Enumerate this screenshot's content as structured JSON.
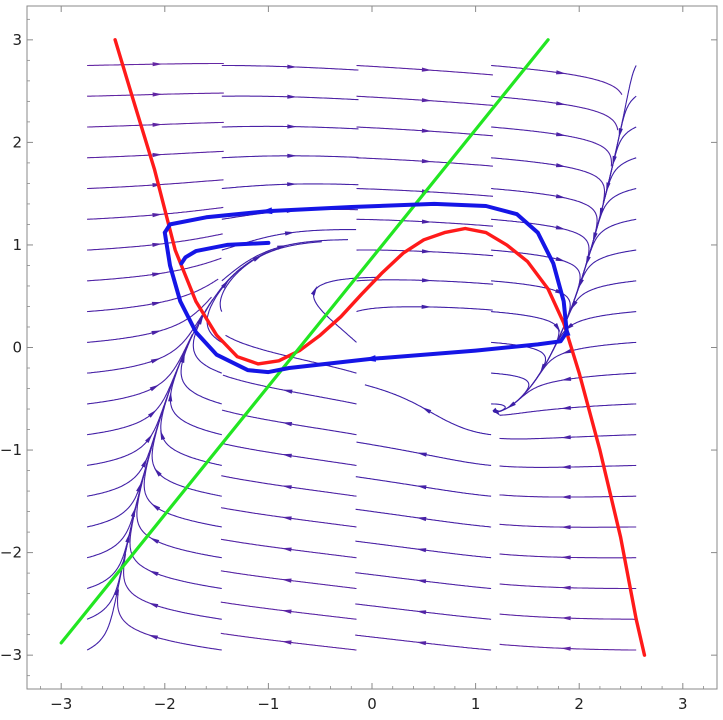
{
  "chart_data": {
    "type": "stream",
    "title": "",
    "xlabel": "",
    "ylabel": "",
    "xlim": [
      -3.33,
      3.33
    ],
    "ylim": [
      -3.33,
      3.33
    ],
    "x_ticks": [
      -3,
      -2,
      -1,
      0,
      1,
      2,
      3
    ],
    "y_ticks": [
      -3,
      -2,
      -1,
      0,
      1,
      2,
      3
    ],
    "x_tick_labels": [
      "−3",
      "−2",
      "−1",
      "0",
      "1",
      "2",
      "3"
    ],
    "y_tick_labels": [
      "−3",
      "−2",
      "−1",
      "0",
      "1",
      "2",
      "3"
    ],
    "grid": false,
    "frame": true,
    "colors": {
      "frame": "#8a8a8a",
      "stream_slow": "#3a1fa8",
      "stream_mid": "#8a2e9e",
      "stream_fast": "#ff8c14",
      "nullcline_cubic": "#ff1a1a",
      "nullcline_line": "#22e622",
      "limit_cycle": "#1515e6"
    },
    "curves": [
      {
        "name": "",
        "kind": "cubic-nullcline",
        "color": "#ff1a1a",
        "points": [
          [
            -2.48,
            3.0
          ],
          [
            -2.3,
            2.4
          ],
          [
            -2.1,
            1.74
          ],
          [
            -1.9,
            0.95
          ],
          [
            -1.7,
            0.45
          ],
          [
            -1.5,
            0.12
          ],
          [
            -1.3,
            -0.09
          ],
          [
            -1.1,
            -0.16
          ],
          [
            -0.9,
            -0.13
          ],
          [
            -0.7,
            -0.03
          ],
          [
            -0.5,
            0.12
          ],
          [
            -0.3,
            0.3
          ],
          [
            -0.1,
            0.52
          ],
          [
            0.1,
            0.73
          ],
          [
            0.3,
            0.92
          ],
          [
            0.5,
            1.05
          ],
          [
            0.7,
            1.12
          ],
          [
            0.9,
            1.16
          ],
          [
            1.1,
            1.12
          ],
          [
            1.3,
            1.0
          ],
          [
            1.5,
            0.84
          ],
          [
            1.7,
            0.57
          ],
          [
            1.85,
            0.24
          ],
          [
            2.0,
            -0.25
          ],
          [
            2.2,
            -1.0
          ],
          [
            2.4,
            -1.85
          ],
          [
            2.55,
            -2.65
          ],
          [
            2.63,
            -3.0
          ]
        ]
      },
      {
        "name": "",
        "kind": "linear-nullcline",
        "color": "#22e622",
        "points": [
          [
            -3.0,
            -2.88
          ],
          [
            1.7,
            3.0
          ]
        ]
      },
      {
        "name": "",
        "kind": "limit-cycle",
        "color": "#1515e6",
        "points": [
          [
            -2.0,
            1.12
          ],
          [
            -1.95,
            1.2
          ],
          [
            -1.6,
            1.27
          ],
          [
            -1.0,
            1.33
          ],
          [
            -0.2,
            1.37
          ],
          [
            0.6,
            1.4
          ],
          [
            1.1,
            1.38
          ],
          [
            1.4,
            1.3
          ],
          [
            1.6,
            1.12
          ],
          [
            1.75,
            0.82
          ],
          [
            1.85,
            0.45
          ],
          [
            1.88,
            0.15
          ],
          [
            1.82,
            0.06
          ],
          [
            1.6,
            0.03
          ],
          [
            1.0,
            -0.03
          ],
          [
            0.0,
            -0.11
          ],
          [
            -0.8,
            -0.2
          ],
          [
            -1.0,
            -0.24
          ],
          [
            -1.2,
            -0.22
          ],
          [
            -1.5,
            -0.07
          ],
          [
            -1.7,
            0.15
          ],
          [
            -1.85,
            0.45
          ],
          [
            -1.95,
            0.8
          ],
          [
            -2.0,
            1.12
          ]
        ]
      },
      {
        "name": "",
        "kind": "trajectory",
        "color": "#1515e6",
        "points": [
          [
            -1.0,
            1.02
          ],
          [
            -1.4,
            1.0
          ],
          [
            -1.7,
            0.94
          ],
          [
            -1.8,
            0.88
          ],
          [
            -1.84,
            0.82
          ]
        ]
      }
    ]
  }
}
